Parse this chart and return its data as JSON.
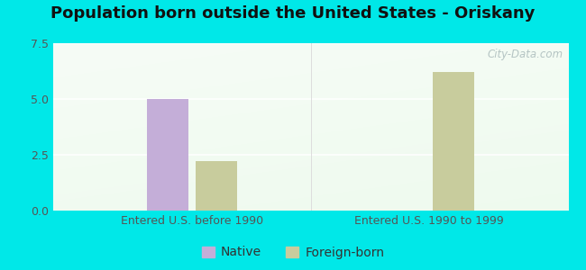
{
  "title": "Population born outside the United States - Oriskany",
  "groups": [
    "Entered U.S. before 1990",
    "Entered U.S. 1990 to 1999"
  ],
  "series": [
    "Native",
    "Foreign-born"
  ],
  "values": [
    [
      5.0,
      2.2
    ],
    [
      0,
      6.2
    ]
  ],
  "native_color": "#c4aed8",
  "foreign_color": "#c8cc9d",
  "ylim": [
    0,
    7.5
  ],
  "yticks": [
    0,
    2.5,
    5,
    7.5
  ],
  "bg_outer": "#00e8e8",
  "watermark": "City-Data.com",
  "bar_width": 0.08,
  "group_centers": [
    0.27,
    0.73
  ],
  "bar_gap": 0.095,
  "figsize": [
    6.5,
    3.0
  ],
  "dpi": 100,
  "title_fontsize": 13,
  "tick_fontsize": 9,
  "legend_fontsize": 10
}
